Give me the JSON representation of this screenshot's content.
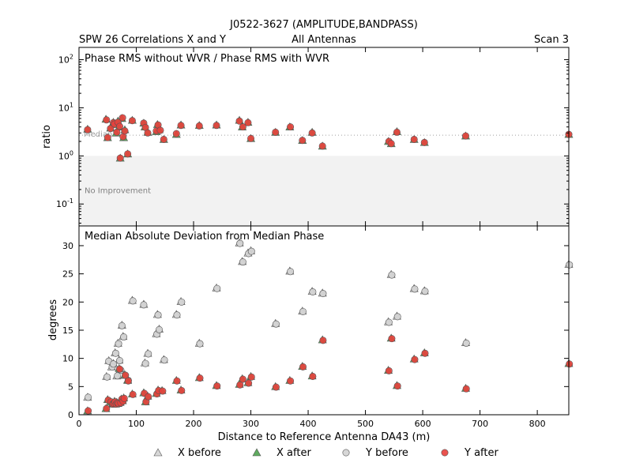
{
  "header": {
    "title": "J0522-3627 (AMPLITUDE,BANDPASS)",
    "left": "SPW 26 Correlations X and Y",
    "center": "All Antennas",
    "right": "Scan 3"
  },
  "chart_data": [
    {
      "type": "scatter",
      "title": "Phase RMS without WVR / Phase RMS with WVR",
      "ylabel": "ratio",
      "yscale": "log",
      "xlim": [
        0,
        855
      ],
      "ylim": [
        0.035,
        180
      ],
      "yticks": [
        {
          "value": 0.1,
          "base": "10",
          "exp": "-1"
        },
        {
          "value": 1,
          "base": "10",
          "exp": "0"
        },
        {
          "value": 10,
          "base": "10",
          "exp": "1"
        },
        {
          "value": 100,
          "base": "10",
          "exp": "2"
        }
      ],
      "median_line": {
        "value": 2.7,
        "label": "Median"
      },
      "no_improvement": {
        "below": 1,
        "label": "No Improvement"
      },
      "series": [
        {
          "name": "X after",
          "marker": "triangle",
          "color": "#4ea24e",
          "x": [
            15,
            47,
            50,
            55,
            60,
            63,
            65,
            68,
            70,
            72,
            75,
            78,
            80,
            85,
            93,
            113,
            115,
            120,
            135,
            137,
            140,
            148,
            170,
            178,
            210,
            240,
            280,
            285,
            295,
            300,
            343,
            368,
            390,
            407,
            425,
            540,
            545,
            555,
            585,
            603,
            675,
            855
          ],
          "y": [
            3.6,
            5.8,
            2.4,
            3.8,
            5.0,
            4.5,
            3.0,
            5.3,
            4.0,
            0.9,
            6.0,
            2.4,
            3.5,
            1.1,
            5.5,
            4.8,
            4.0,
            3.1,
            3.2,
            4.5,
            3.5,
            2.2,
            2.8,
            4.4,
            4.3,
            4.4,
            5.5,
            4.0,
            5.0,
            2.3,
            3.1,
            4.0,
            2.1,
            3.1,
            1.6,
            2.0,
            1.8,
            3.2,
            2.2,
            1.9,
            2.6,
            2.8
          ]
        },
        {
          "name": "Y after",
          "marker": "circle",
          "color": "#e8403c",
          "x": [
            15,
            48,
            50,
            55,
            60,
            62,
            66,
            68,
            71,
            72,
            76,
            77,
            80,
            85,
            93,
            113,
            116,
            120,
            135,
            138,
            142,
            148,
            170,
            178,
            210,
            240,
            280,
            286,
            295,
            300,
            343,
            369,
            390,
            407,
            425,
            541,
            545,
            555,
            585,
            603,
            675,
            855
          ],
          "y": [
            3.5,
            5.6,
            2.4,
            3.7,
            4.9,
            4.6,
            3.1,
            5.0,
            4.1,
            0.9,
            6.2,
            2.5,
            3.3,
            1.1,
            5.4,
            4.8,
            3.9,
            3.0,
            3.3,
            4.4,
            3.4,
            2.2,
            2.9,
            4.3,
            4.2,
            4.3,
            5.3,
            4.0,
            4.9,
            2.3,
            3.1,
            4.0,
            2.1,
            3.0,
            1.6,
            2.0,
            1.8,
            3.1,
            2.2,
            1.9,
            2.6,
            2.8
          ]
        }
      ]
    },
    {
      "type": "scatter",
      "title": "Median Absolute Deviation from Median Phase",
      "xlabel": "Distance to Reference Antenna DA43 (m)",
      "ylabel": "degrees",
      "xlim": [
        0,
        855
      ],
      "ylim": [
        0,
        33.5
      ],
      "xticks": [
        0,
        100,
        200,
        300,
        400,
        500,
        600,
        700,
        800
      ],
      "yticks": [
        0,
        5,
        10,
        15,
        20,
        25,
        30
      ],
      "series": [
        {
          "name": "X before",
          "marker": "triangle",
          "color": "#d3d3d3",
          "x": [
            15,
            48,
            52,
            57,
            60,
            63,
            66,
            68,
            70,
            72,
            75,
            77,
            80,
            85,
            93,
            113,
            115,
            120,
            135,
            137,
            140,
            148,
            170,
            178,
            210,
            240,
            280,
            285,
            295,
            300,
            343,
            368,
            390,
            407,
            425,
            540,
            545,
            555,
            585,
            603,
            675,
            855
          ],
          "y": [
            3.1,
            6.8,
            9.6,
            8.5,
            9.1,
            11.0,
            6.9,
            12.7,
            9.7,
            8.0,
            15.9,
            13.9,
            7.0,
            6.2,
            20.3,
            19.6,
            9.2,
            10.9,
            14.4,
            17.8,
            15.2,
            9.8,
            17.8,
            20.1,
            12.7,
            22.5,
            30.5,
            27.2,
            28.7,
            29.1,
            16.2,
            25.5,
            18.4,
            21.9,
            21.6,
            16.5,
            24.9,
            17.5,
            22.4,
            22.0,
            12.8,
            26.7
          ]
        },
        {
          "name": "Y before",
          "marker": "circle",
          "color": "#d3d3d3",
          "x": [
            16,
            49,
            52,
            58,
            60,
            64,
            67,
            69,
            71,
            73,
            75,
            78,
            81,
            86,
            94,
            113,
            116,
            121,
            136,
            138,
            140,
            149,
            171,
            179,
            211,
            241,
            281,
            286,
            296,
            301,
            344,
            369,
            391,
            408,
            426,
            541,
            546,
            556,
            586,
            604,
            676,
            856
          ],
          "y": [
            3.1,
            6.7,
            9.5,
            8.5,
            9.0,
            10.9,
            6.9,
            12.6,
            9.6,
            7.9,
            15.8,
            13.8,
            7.0,
            6.1,
            20.2,
            19.5,
            9.1,
            10.8,
            14.3,
            17.7,
            15.1,
            9.7,
            17.7,
            20.0,
            12.6,
            22.4,
            30.4,
            27.1,
            28.6,
            29.0,
            16.1,
            25.4,
            18.3,
            21.8,
            21.5,
            16.4,
            24.8,
            17.4,
            22.3,
            21.9,
            12.7,
            26.6
          ]
        },
        {
          "name": "X after",
          "marker": "triangle",
          "color": "#4ea24e",
          "x": [
            15,
            47,
            50,
            55,
            58,
            60,
            62,
            64,
            66,
            68,
            70,
            72,
            74,
            76,
            78,
            80,
            85,
            93,
            113,
            116,
            120,
            135,
            138,
            145,
            170,
            178,
            210,
            240,
            280,
            285,
            295,
            300,
            343,
            368,
            390,
            407,
            425,
            540,
            545,
            555,
            585,
            603,
            675,
            855
          ],
          "y": [
            0.7,
            1.1,
            2.7,
            2.3,
            1.9,
            2.0,
            2.4,
            1.9,
            2.2,
            2.0,
            8.2,
            2.2,
            2.8,
            2.5,
            3.0,
            7.1,
            6.1,
            3.7,
            3.9,
            2.3,
            3.3,
            3.8,
            4.4,
            4.3,
            6.1,
            4.4,
            6.6,
            5.2,
            5.4,
            6.4,
            5.7,
            6.8,
            5.0,
            6.1,
            8.6,
            6.9,
            13.3,
            7.9,
            13.6,
            5.2,
            9.9,
            11.0,
            4.7,
            9.1
          ]
        },
        {
          "name": "Y after",
          "marker": "circle",
          "color": "#e8403c",
          "x": [
            16,
            48,
            51,
            56,
            59,
            61,
            63,
            65,
            67,
            69,
            71,
            73,
            75,
            77,
            79,
            81,
            86,
            94,
            114,
            117,
            121,
            136,
            139,
            146,
            171,
            179,
            211,
            241,
            281,
            286,
            296,
            301,
            344,
            369,
            391,
            408,
            426,
            541,
            546,
            556,
            586,
            604,
            676,
            856
          ],
          "y": [
            0.7,
            1.1,
            2.6,
            2.3,
            1.9,
            2.0,
            2.3,
            1.9,
            2.1,
            2.0,
            8.1,
            2.1,
            2.8,
            2.4,
            2.9,
            7.0,
            6.0,
            3.6,
            3.8,
            2.3,
            3.2,
            3.7,
            4.3,
            4.2,
            6.0,
            4.3,
            6.5,
            5.1,
            5.3,
            6.3,
            5.6,
            6.7,
            4.9,
            6.0,
            8.5,
            6.8,
            13.2,
            7.8,
            13.5,
            5.1,
            9.8,
            10.9,
            4.6,
            9.0
          ]
        }
      ]
    }
  ],
  "legend": [
    {
      "label": "X before",
      "marker": "triangle",
      "color": "#d3d3d3"
    },
    {
      "label": "X after",
      "marker": "triangle",
      "color": "#4ea24e"
    },
    {
      "label": "Y before",
      "marker": "circle",
      "color": "#d3d3d3"
    },
    {
      "label": "Y after",
      "marker": "circle",
      "color": "#e8403c"
    }
  ]
}
